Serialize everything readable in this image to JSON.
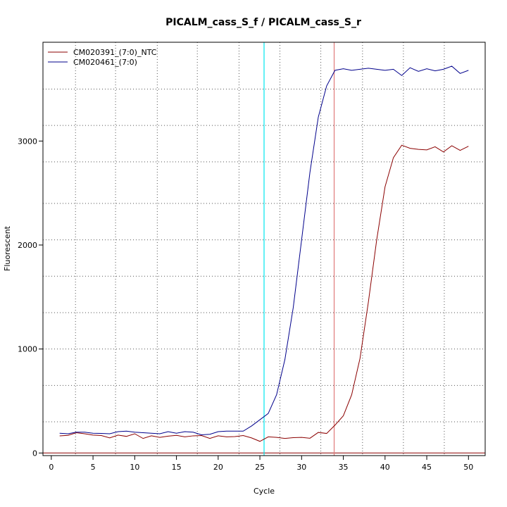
{
  "chart_data": {
    "type": "line",
    "title": "PICALM_cass_S_f / PICALM_cass_S_r",
    "xlabel": "Cycle",
    "ylabel": "Fluorescent",
    "xlim": [
      -1.0,
      52.0
    ],
    "ylim": [
      -25,
      3950
    ],
    "x_ticks": [
      0,
      5,
      10,
      15,
      20,
      25,
      30,
      35,
      40,
      45,
      50
    ],
    "x_tick_labels": [
      "0",
      "5",
      "10",
      "15",
      "20",
      "25",
      "30",
      "35",
      "40",
      "45",
      "50"
    ],
    "y_ticks": [
      0,
      1000,
      2000,
      3000
    ],
    "y_tick_labels": [
      "0",
      "1000",
      "2000",
      "3000"
    ],
    "vgrid_dotted": [
      2.9,
      7.7,
      12.7,
      17.5,
      22.5,
      27.4,
      32.3,
      37.3,
      42.2,
      47.1
    ],
    "hgrid_dotted": [
      300,
      650,
      1000,
      1350,
      1700,
      2050,
      2400,
      2800,
      3150,
      3500
    ],
    "threshold_line": {
      "y": 0,
      "color": "#8b0000"
    },
    "vertical_markers": [
      {
        "x": 25.5,
        "color": "#00e5ee"
      },
      {
        "x": 33.9,
        "color": "#e07a7a"
      }
    ],
    "legend_position": "top-left",
    "series": [
      {
        "name": "CM020391_(7:0)_NTC",
        "color": "#8b0000",
        "x": [
          1,
          2,
          3,
          4,
          5,
          6,
          7,
          8,
          9,
          10,
          11,
          12,
          13,
          14,
          15,
          16,
          17,
          18,
          19,
          20,
          21,
          22,
          23,
          24,
          25,
          26,
          27,
          28,
          29,
          30,
          31,
          32,
          33,
          34,
          35,
          36,
          37,
          38,
          39,
          40,
          41,
          42,
          43,
          44,
          45,
          46,
          47,
          48,
          49,
          50
        ],
        "values": [
          165,
          170,
          195,
          185,
          172,
          168,
          145,
          172,
          160,
          185,
          140,
          165,
          150,
          162,
          170,
          155,
          165,
          168,
          140,
          165,
          155,
          158,
          168,
          145,
          112,
          155,
          150,
          140,
          148,
          150,
          142,
          198,
          188,
          268,
          358,
          560,
          910,
          1450,
          2050,
          2560,
          2840,
          2960,
          2930,
          2920,
          2915,
          2945,
          2895,
          2955,
          2910,
          2950
        ]
      },
      {
        "name": "CM020461_(7:0)",
        "color": "#00008b",
        "x": [
          1,
          2,
          3,
          4,
          5,
          6,
          7,
          8,
          9,
          10,
          11,
          12,
          13,
          14,
          15,
          16,
          17,
          18,
          19,
          20,
          21,
          22,
          23,
          24,
          25,
          26,
          27,
          28,
          29,
          30,
          31,
          32,
          33,
          34,
          35,
          36,
          37,
          38,
          39,
          40,
          41,
          42,
          43,
          44,
          45,
          46,
          47,
          48,
          49,
          50
        ],
        "values": [
          190,
          185,
          200,
          200,
          190,
          188,
          185,
          205,
          210,
          200,
          195,
          190,
          185,
          205,
          190,
          205,
          200,
          175,
          180,
          205,
          210,
          210,
          210,
          260,
          320,
          380,
          560,
          900,
          1400,
          2050,
          2700,
          3230,
          3530,
          3680,
          3695,
          3680,
          3690,
          3700,
          3690,
          3680,
          3690,
          3630,
          3705,
          3670,
          3695,
          3675,
          3690,
          3720,
          3650,
          3680
        ]
      }
    ]
  }
}
